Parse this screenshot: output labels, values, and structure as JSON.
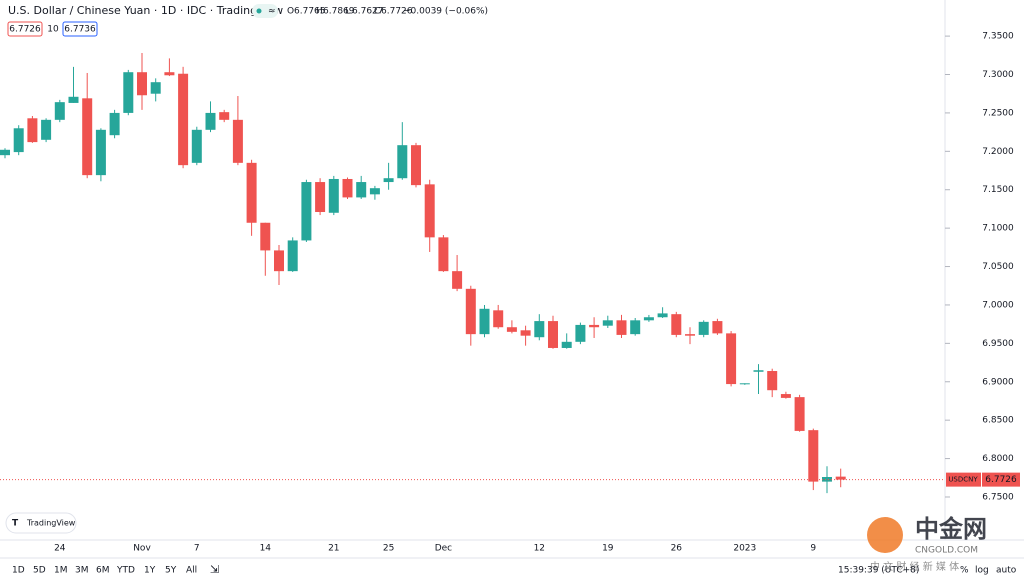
{
  "chart_data": {
    "type": "candlestick",
    "title": "U.S. Dollar / Chinese Yuan · 1D · IDC · TradingView",
    "symbol": "USDCNY",
    "up_color": "#26a69a",
    "down_color": "#ef5350",
    "categories": [
      null,
      null,
      null,
      null,
      "24",
      null,
      null,
      null,
      null,
      null,
      "Nov",
      null,
      null,
      null,
      "7",
      null,
      null,
      null,
      null,
      "14",
      null,
      null,
      null,
      null,
      "21",
      null,
      null,
      null,
      "25",
      null,
      null,
      null,
      "Dec",
      null,
      null,
      null,
      null,
      null,
      null,
      "12",
      null,
      null,
      null,
      null,
      "19",
      null,
      null,
      null,
      null,
      "26",
      null,
      null,
      null,
      null,
      "2023",
      null,
      null,
      null,
      null,
      "9",
      null,
      null
    ],
    "open": [
      7.195,
      7.199,
      7.243,
      7.215,
      7.241,
      7.263,
      7.269,
      7.169,
      7.221,
      7.25,
      7.303,
      7.275,
      7.303,
      7.301,
      7.185,
      7.228,
      7.251,
      7.241,
      7.185,
      7.107,
      7.071,
      7.044,
      7.084,
      7.16,
      7.12,
      7.164,
      7.14,
      7.144,
      7.16,
      7.165,
      7.208,
      7.157,
      7.088,
      7.044,
      7.021,
      6.962,
      6.993,
      6.971,
      6.967,
      6.958,
      6.979,
      6.944,
      6.952,
      6.974,
      6.973,
      6.98,
      6.962,
      6.98,
      6.984,
      6.988,
      6.962,
      6.961,
      6.979,
      6.963,
      6.897,
      6.913,
      6.914,
      6.884,
      6.88,
      6.837,
      6.77,
      6.7765
    ],
    "high": [
      7.204,
      7.234,
      7.246,
      7.243,
      7.267,
      7.31,
      7.302,
      7.23,
      7.254,
      7.306,
      7.328,
      7.295,
      7.321,
      7.31,
      7.232,
      7.265,
      7.254,
      7.272,
      7.189,
      7.107,
      7.078,
      7.088,
      7.163,
      7.165,
      7.168,
      7.166,
      7.168,
      7.155,
      7.185,
      7.238,
      7.211,
      7.163,
      7.091,
      7.065,
      7.025,
      7.0,
      7.0,
      6.98,
      6.973,
      6.988,
      6.986,
      6.963,
      6.977,
      6.984,
      6.986,
      6.987,
      6.983,
      6.987,
      6.997,
      6.991,
      6.971,
      6.98,
      6.982,
      6.966,
      6.898,
      6.923,
      6.917,
      6.887,
      6.883,
      6.839,
      6.79,
      6.7869
    ],
    "low": [
      7.191,
      7.195,
      7.211,
      7.212,
      7.238,
      7.263,
      7.165,
      7.161,
      7.217,
      7.247,
      7.254,
      7.265,
      7.298,
      7.178,
      7.182,
      7.225,
      7.238,
      7.182,
      7.09,
      7.038,
      7.026,
      7.043,
      7.082,
      7.117,
      7.117,
      7.138,
      7.138,
      7.137,
      7.15,
      7.163,
      7.153,
      7.069,
      7.043,
      7.018,
      6.947,
      6.958,
      6.969,
      6.963,
      6.947,
      6.954,
      6.943,
      6.943,
      6.949,
      6.957,
      6.97,
      6.957,
      6.96,
      6.978,
      6.983,
      6.958,
      6.949,
      6.958,
      6.961,
      6.894,
      6.896,
      6.884,
      6.88,
      6.878,
      6.835,
      6.759,
      6.755,
      6.7627
    ],
    "close": [
      7.202,
      7.23,
      7.212,
      7.241,
      7.264,
      7.271,
      7.169,
      7.228,
      7.25,
      7.303,
      7.273,
      7.29,
      7.299,
      7.182,
      7.228,
      7.25,
      7.241,
      7.185,
      7.107,
      7.071,
      7.044,
      7.084,
      7.16,
      7.121,
      7.164,
      7.14,
      7.16,
      7.152,
      7.165,
      7.208,
      7.156,
      7.088,
      7.044,
      7.021,
      6.962,
      6.995,
      6.971,
      6.965,
      6.96,
      6.979,
      6.944,
      6.952,
      6.974,
      6.971,
      6.98,
      6.961,
      6.98,
      6.984,
      6.989,
      6.961,
      6.96,
      6.978,
      6.963,
      6.897,
      6.898,
      6.915,
      6.889,
      6.879,
      6.836,
      6.77,
      6.776,
      6.7726
    ],
    "ylim": [
      6.694,
      7.397
    ],
    "yticks": [
      {
        "value": 6.75,
        "label": "6.7500"
      },
      {
        "value": 6.8,
        "label": "6.8000"
      },
      {
        "value": 6.85,
        "label": "6.8500"
      },
      {
        "value": 6.9,
        "label": "6.9000"
      },
      {
        "value": 6.95,
        "label": "6.9500"
      },
      {
        "value": 7.0,
        "label": "7.0000"
      },
      {
        "value": 7.05,
        "label": "7.0500"
      },
      {
        "value": 7.1,
        "label": "7.1000"
      },
      {
        "value": 7.15,
        "label": "7.1500"
      },
      {
        "value": 7.2,
        "label": "7.2000"
      },
      {
        "value": 7.25,
        "label": "7.2500"
      },
      {
        "value": 7.3,
        "label": "7.3000"
      },
      {
        "value": 7.35,
        "label": "7.3500"
      }
    ],
    "grid": false
  },
  "ui": {
    "ohlc_letters": [
      "O",
      "H",
      "L",
      "C"
    ],
    "change": "−0.0039 (−0.06%)",
    "spread": "10",
    "ask": "6.7736",
    "logo": "TradingView",
    "ranges": [
      "1D",
      "5D",
      "1M",
      "3M",
      "6M",
      "YTD",
      "1Y",
      "5Y",
      "All"
    ],
    "time": "15:39:39 (UTC+8)",
    "percent": "%",
    "log": "log",
    "auto": "auto",
    "watermark": {
      "name": "中金网",
      "site": "CNGOLD.COM",
      "slogan": "中 文 财 经 新 媒 体"
    }
  }
}
